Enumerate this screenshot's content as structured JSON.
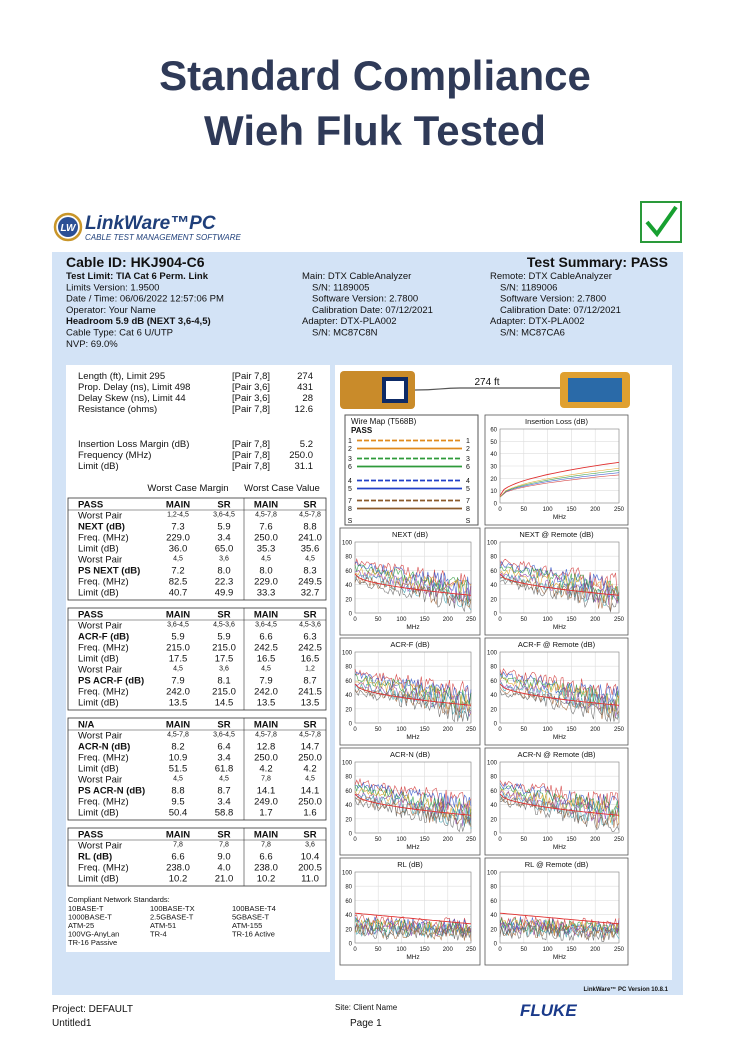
{
  "header": {
    "title_lines": [
      "Standard Compliance",
      "Wieh Fluk Tested"
    ]
  },
  "logo": {
    "badge": "LW",
    "name": "LinkWare™PC",
    "tagline": "CABLE TEST MANAGEMENT SOFTWARE"
  },
  "summary": {
    "cable_id": "Cable ID: HKJ904-C6",
    "result": "Test Summary: PASS",
    "left": [
      "Test Limit: TIA Cat 6 Perm. Link",
      "Limits Version: 1.9500",
      "Date / Time: 06/06/2022 12:57:06 PM",
      "Operator: Your Name",
      "Headroom 5.9 dB (NEXT 3,6-4,5)",
      "Cable Type: Cat 6 U/UTP",
      "NVP: 69.0%"
    ],
    "middle": [
      "Main: DTX CableAnalyzer",
      "S/N: 1189005",
      "Software Version: 2.7800",
      "Calibration Date: 07/12/2021",
      "Adapter: DTX-PLA002",
      "S/N: MC87C8N"
    ],
    "right": [
      "Remote: DTX CableAnalyzer",
      "S/N: 1189006",
      "Software Version: 2.7800",
      "Calibration Date: 07/12/2021",
      "Adapter: DTX-PLA002",
      "S/N: MC87CA6"
    ]
  },
  "measurements": [
    [
      "Length (ft), Limit 295",
      "[Pair 7,8]",
      "274"
    ],
    [
      "Prop. Delay (ns), Limit 498",
      "[Pair 3,6]",
      "431"
    ],
    [
      "Delay Skew (ns), Limit 44",
      "[Pair 3,6]",
      "28"
    ],
    [
      "Resistance (ohms)",
      "[Pair 7,8]",
      "12.6"
    ],
    [
      "Insertion Loss Margin (dB)",
      "[Pair 7,8]",
      "5.2"
    ],
    [
      "Frequency (MHz)",
      "[Pair 7,8]",
      "250.0"
    ],
    [
      "Limit (dB)",
      "[Pair 7,8]",
      "31.1"
    ]
  ],
  "column_groups": [
    "Worst Case Margin",
    "Worst Case Value"
  ],
  "blocks": [
    {
      "header": [
        "PASS",
        "MAIN",
        "SR",
        "MAIN",
        "SR"
      ],
      "rows": [
        {
          "label": "Worst Pair",
          "cells": [
            "1,2-4,5",
            "3,6-4,5",
            "4,5-7,8",
            "4,5-7,8"
          ]
        },
        {
          "label": "NEXT (dB)",
          "cells": [
            "7.3",
            "5.9",
            "7.6",
            "8.8"
          ]
        },
        {
          "label": "Freq. (MHz)",
          "cells": [
            "229.0",
            "3.4",
            "250.0",
            "241.0"
          ]
        },
        {
          "label": "Limit (dB)",
          "cells": [
            "36.0",
            "65.0",
            "35.3",
            "35.6"
          ]
        },
        {
          "label": "Worst Pair",
          "cells": [
            "4,5",
            "3,6",
            "4,5",
            "4,5"
          ]
        },
        {
          "label": "PS NEXT (dB)",
          "cells": [
            "7.2",
            "8.0",
            "8.0",
            "8.3"
          ]
        },
        {
          "label": "Freq. (MHz)",
          "cells": [
            "82.5",
            "22.3",
            "229.0",
            "249.5"
          ]
        },
        {
          "label": "Limit (dB)",
          "cells": [
            "40.7",
            "49.9",
            "33.3",
            "32.7"
          ]
        }
      ]
    },
    {
      "header": [
        "PASS",
        "MAIN",
        "SR",
        "MAIN",
        "SR"
      ],
      "rows": [
        {
          "label": "Worst Pair",
          "cells": [
            "3,6-4,5",
            "4,5-3,6",
            "3,6-4,5",
            "4,5-3,6"
          ]
        },
        {
          "label": "ACR-F (dB)",
          "cells": [
            "5.9",
            "5.9",
            "6.6",
            "6.3"
          ]
        },
        {
          "label": "Freq. (MHz)",
          "cells": [
            "215.0",
            "215.0",
            "242.5",
            "242.5"
          ]
        },
        {
          "label": "Limit (dB)",
          "cells": [
            "17.5",
            "17.5",
            "16.5",
            "16.5"
          ]
        },
        {
          "label": "Worst Pair",
          "cells": [
            "4,5",
            "3,6",
            "4,5",
            "1,2"
          ]
        },
        {
          "label": "PS ACR-F (dB)",
          "cells": [
            "7.9",
            "8.1",
            "7.9",
            "8.7"
          ]
        },
        {
          "label": "Freq. (MHz)",
          "cells": [
            "242.0",
            "215.0",
            "242.0",
            "241.5"
          ]
        },
        {
          "label": "Limit (dB)",
          "cells": [
            "13.5",
            "14.5",
            "13.5",
            "13.5"
          ]
        }
      ]
    },
    {
      "header": [
        "N/A",
        "MAIN",
        "SR",
        "MAIN",
        "SR"
      ],
      "rows": [
        {
          "label": "Worst Pair",
          "cells": [
            "4,5-7,8",
            "3,6-4,5",
            "4,5-7,8",
            "4,5-7,8"
          ]
        },
        {
          "label": "ACR-N (dB)",
          "cells": [
            "8.2",
            "6.4",
            "12.8",
            "14.7"
          ]
        },
        {
          "label": "Freq. (MHz)",
          "cells": [
            "10.9",
            "3.4",
            "250.0",
            "250.0"
          ]
        },
        {
          "label": "Limit (dB)",
          "cells": [
            "51.5",
            "61.8",
            "4.2",
            "4.2"
          ]
        },
        {
          "label": "Worst Pair",
          "cells": [
            "4,5",
            "4,5",
            "7,8",
            "4,5"
          ]
        },
        {
          "label": "PS ACR-N (dB)",
          "cells": [
            "8.8",
            "8.7",
            "14.1",
            "14.1"
          ]
        },
        {
          "label": "Freq. (MHz)",
          "cells": [
            "9.5",
            "3.4",
            "249.0",
            "250.0"
          ]
        },
        {
          "label": "Limit (dB)",
          "cells": [
            "50.4",
            "58.8",
            "1.7",
            "1.6"
          ]
        }
      ]
    },
    {
      "header": [
        "PASS",
        "MAIN",
        "SR",
        "MAIN",
        "SR"
      ],
      "rows": [
        {
          "label": "Worst Pair",
          "cells": [
            "7,8",
            "7,8",
            "7,8",
            "3,6"
          ]
        },
        {
          "label": "RL (dB)",
          "cells": [
            "6.6",
            "9.0",
            "6.6",
            "10.4"
          ]
        },
        {
          "label": "Freq. (MHz)",
          "cells": [
            "238.0",
            "4.0",
            "238.0",
            "200.5"
          ]
        },
        {
          "label": "Limit (dB)",
          "cells": [
            "10.2",
            "21.0",
            "10.2",
            "11.0"
          ]
        }
      ]
    }
  ],
  "standards": {
    "title": "Compliant Network Standards:",
    "items": [
      "10BASE-T",
      "100BASE-TX",
      "100BASE-T4",
      "1000BASE-T",
      "2.5GBASE-T",
      "5GBASE-T",
      "ATM-25",
      "ATM-51",
      "ATM-155",
      "100VG-AnyLan",
      "TR-4",
      "TR-16 Active",
      "TR-16 Passive"
    ]
  },
  "cable": {
    "length": "274 ft"
  },
  "wire_map": {
    "title": "Wire Map (T568B)",
    "result": "PASS",
    "pins": [
      "1",
      "2",
      "3",
      "6",
      "4",
      "5",
      "7",
      "8",
      "S"
    ]
  },
  "graphs": [
    {
      "title": "Insertion Loss (dB)",
      "ylim": [
        0,
        60
      ],
      "yticks": [
        0,
        10,
        20,
        30,
        40,
        50,
        60
      ],
      "xlim": [
        0,
        250
      ],
      "xticks": [
        0,
        50,
        100,
        150,
        200,
        250
      ],
      "xlabel": "MHz"
    },
    {
      "title": "NEXT (dB)",
      "ylim": [
        0,
        100
      ],
      "yticks": [
        0,
        20,
        40,
        60,
        80,
        100
      ],
      "xlim": [
        0,
        250
      ],
      "xticks": [
        0,
        50,
        100,
        150,
        200,
        250
      ],
      "xlabel": "MHz"
    },
    {
      "title": "NEXT @ Remote (dB)",
      "ylim": [
        0,
        100
      ],
      "yticks": [
        0,
        20,
        40,
        60,
        80,
        100
      ],
      "xlim": [
        0,
        250
      ],
      "xticks": [
        0,
        50,
        100,
        150,
        200,
        250
      ],
      "xlabel": "MHz"
    },
    {
      "title": "ACR-F (dB)",
      "ylim": [
        0,
        100
      ],
      "yticks": [
        0,
        20,
        40,
        60,
        80,
        100
      ],
      "xlim": [
        0,
        250
      ],
      "xticks": [
        0,
        50,
        100,
        150,
        200,
        250
      ],
      "xlabel": "MHz"
    },
    {
      "title": "ACR-F @ Remote (dB)",
      "ylim": [
        0,
        100
      ],
      "yticks": [
        0,
        20,
        40,
        60,
        80,
        100
      ],
      "xlim": [
        0,
        250
      ],
      "xticks": [
        0,
        50,
        100,
        150,
        200,
        250
      ],
      "xlabel": "MHz"
    },
    {
      "title": "ACR-N (dB)",
      "ylim": [
        0,
        100
      ],
      "yticks": [
        0,
        20,
        40,
        60,
        80,
        100
      ],
      "xlim": [
        0,
        250
      ],
      "xticks": [
        0,
        50,
        100,
        150,
        200,
        250
      ],
      "xlabel": "MHz"
    },
    {
      "title": "ACR-N @ Remote (dB)",
      "ylim": [
        0,
        100
      ],
      "yticks": [
        0,
        20,
        40,
        60,
        80,
        100
      ],
      "xlim": [
        0,
        250
      ],
      "xticks": [
        0,
        50,
        100,
        150,
        200,
        250
      ],
      "xlabel": "MHz"
    },
    {
      "title": "RL (dB)",
      "ylim": [
        0,
        100
      ],
      "yticks": [
        0,
        20,
        40,
        60,
        80,
        100
      ],
      "xlim": [
        0,
        250
      ],
      "xticks": [
        0,
        50,
        100,
        150,
        200,
        250
      ],
      "xlabel": "MHz"
    },
    {
      "title": "RL @ Remote (dB)",
      "ylim": [
        0,
        100
      ],
      "yticks": [
        0,
        20,
        40,
        60,
        80,
        100
      ],
      "xlim": [
        0,
        250
      ],
      "xticks": [
        0,
        50,
        100,
        150,
        200,
        250
      ],
      "xlabel": "MHz"
    }
  ],
  "footer": {
    "version": "LinkWare™ PC Version 10.8.1",
    "project": "Project: DEFAULT",
    "site": "Site: Client Name",
    "brand": "FLUKE",
    "file": "Untitled1",
    "page": "Page 1"
  }
}
